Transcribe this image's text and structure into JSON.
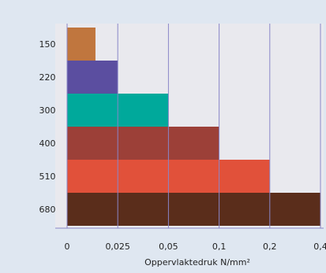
{
  "chart_data": {
    "type": "bar",
    "orientation": "horizontal",
    "categories": [
      "150",
      "220",
      "300",
      "400",
      "510",
      "680"
    ],
    "values": [
      0.014,
      0.025,
      0.05,
      0.1,
      0.2,
      0.4
    ],
    "colors": [
      "#c0763e",
      "#5b4ea0",
      "#00a99b",
      "#9c4038",
      "#e1513a",
      "#5a2d1b"
    ],
    "xlabel": "Oppervlaktedruk N/mm²",
    "xlim": [
      0,
      0.4
    ],
    "xticks": [
      0,
      {
        "value": 0.025,
        "label": "0,025"
      },
      {
        "value": 0.05,
        "label": "0,05"
      },
      {
        "value": 0.1,
        "label": "0,1"
      },
      {
        "value": 0.2,
        "label": "0,2"
      },
      {
        "value": 0.4,
        "label": "0,4"
      }
    ],
    "grid": true
  }
}
